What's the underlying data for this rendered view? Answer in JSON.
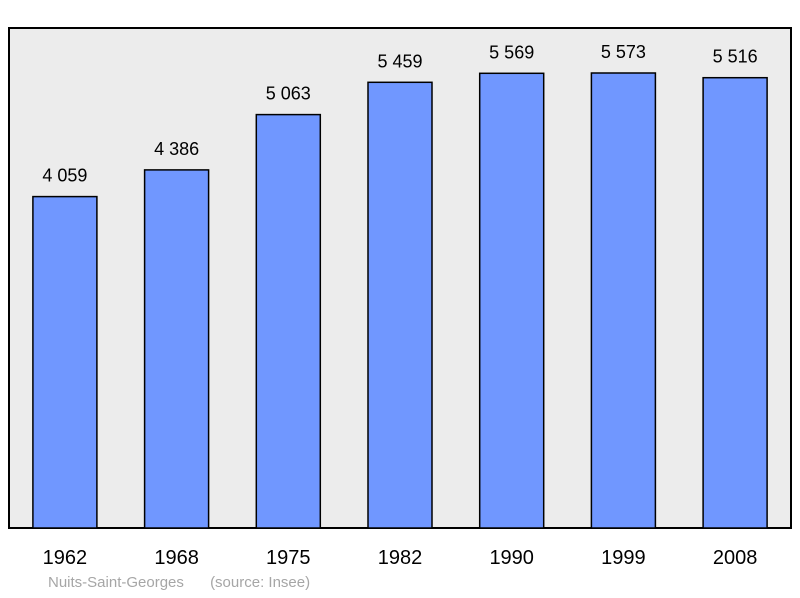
{
  "chart_data": {
    "type": "bar",
    "categories": [
      "1962",
      "1968",
      "1975",
      "1982",
      "1990",
      "1999",
      "2008"
    ],
    "values": [
      4059,
      4386,
      5063,
      5459,
      5569,
      5573,
      5516
    ],
    "value_labels": [
      "4 059",
      "4 386",
      "5 063",
      "5 459",
      "5 569",
      "5 573",
      "5 516"
    ],
    "ylim": [
      0,
      5900
    ],
    "grid": false,
    "colors": {
      "bar": "#7097ff",
      "plot_background": "#ececec",
      "frame": "#000000"
    }
  },
  "footer": {
    "place": "Nuits-Saint-Georges",
    "source": "(source: Insee)"
  }
}
